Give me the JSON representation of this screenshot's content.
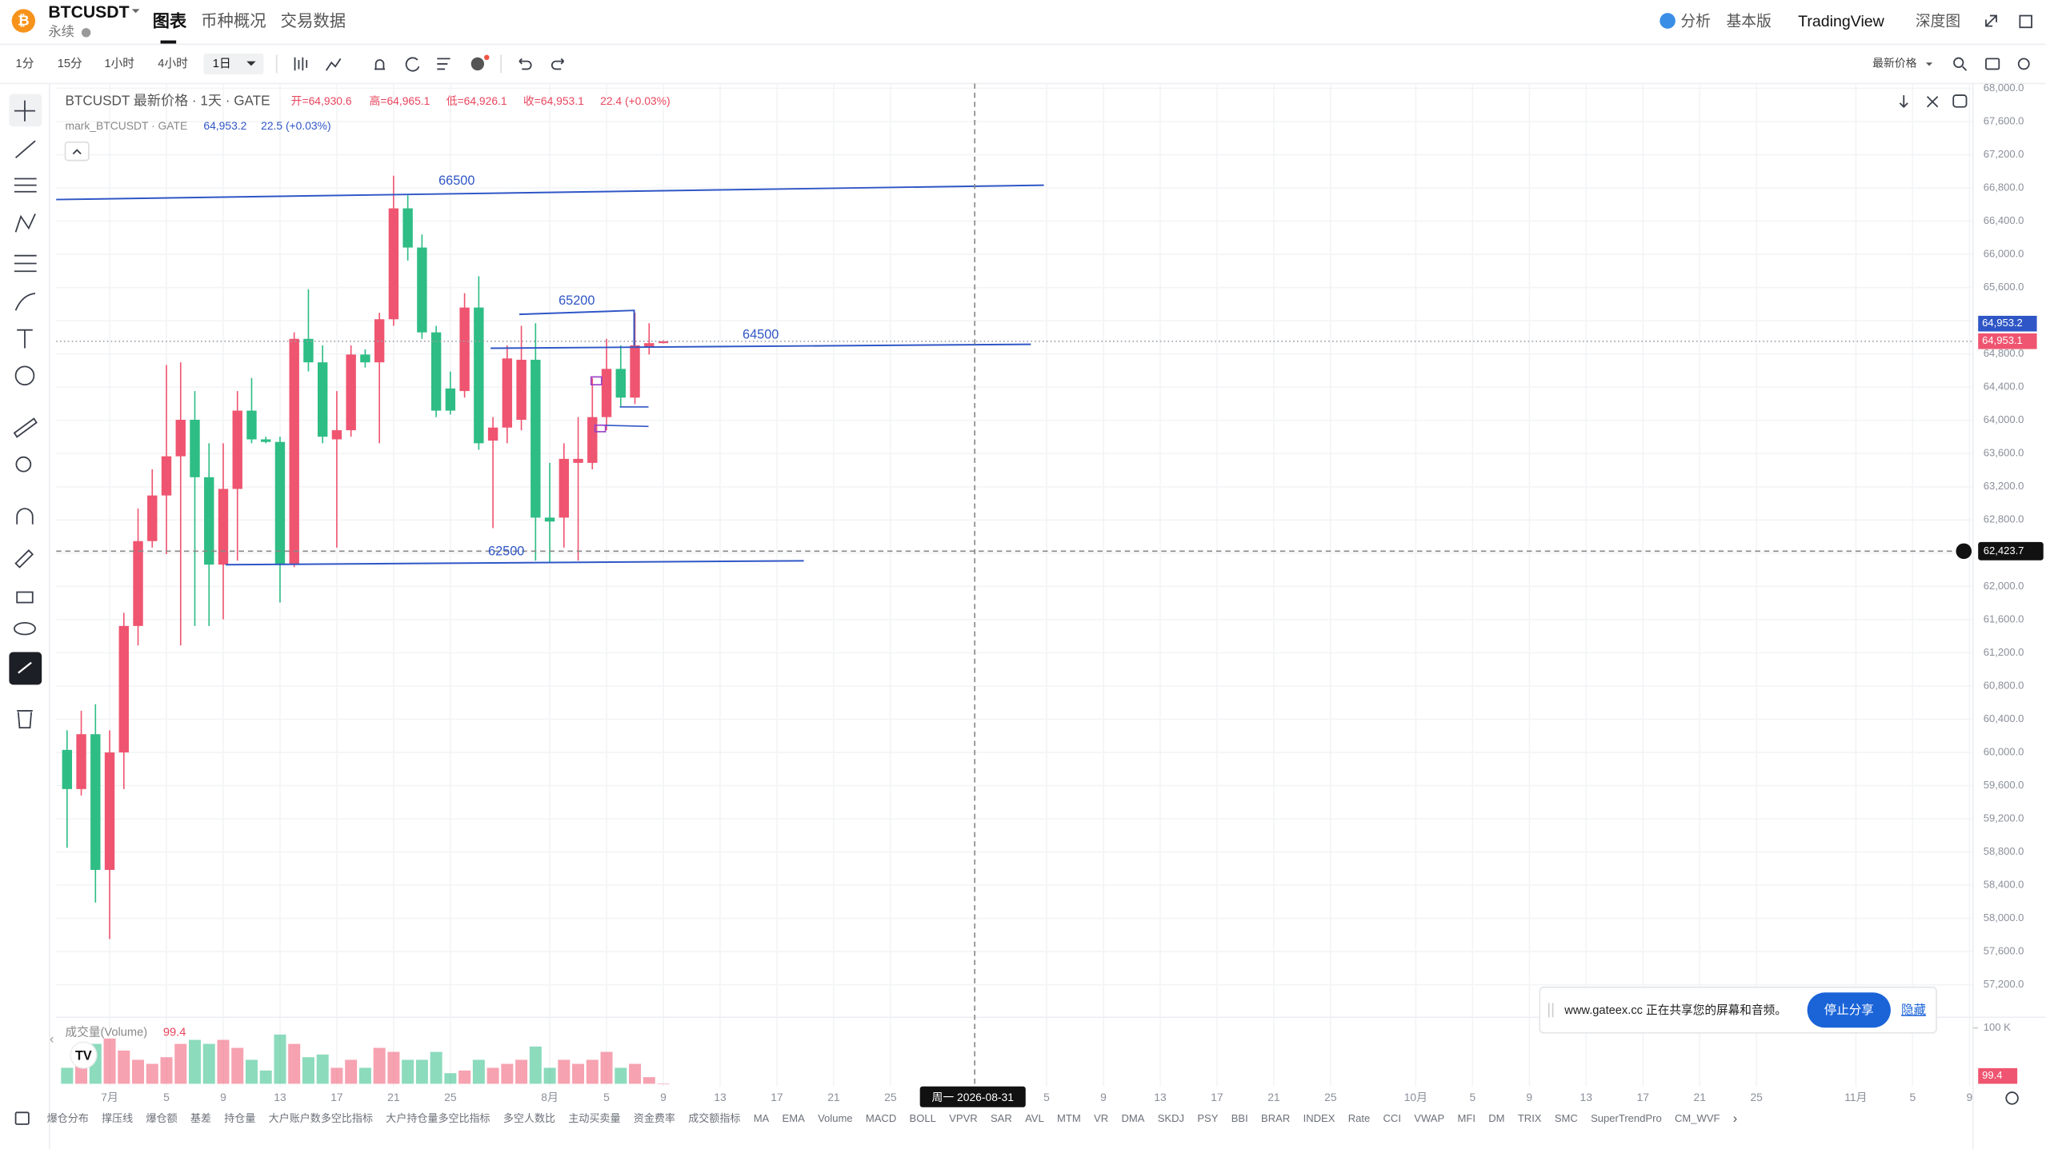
{
  "header": {
    "symbol": "BTCUSDT",
    "contract": "永续",
    "tabs": [
      "图表",
      "币种概况",
      "交易数据"
    ],
    "right": [
      "分析",
      "基本版",
      "TradingView",
      "深度图"
    ]
  },
  "toolbar": {
    "intervals": [
      "1分",
      "15分",
      "1小时",
      "4小时",
      "1日"
    ],
    "price_type": "最新价格"
  },
  "chart_legend": {
    "items": [
      "开=64,930.6",
      "高=64,965.1",
      "低=64,926.1",
      "收=64,953.1",
      "22.4 (+0.03%)"
    ],
    "mark_title": "mark_BTCUSDT · GATE",
    "mark_items": [
      "64,953.2",
      "22.5 (+0.03%)"
    ]
  },
  "indicators": [
    "爆仓分布",
    "撑压线",
    "爆仓额",
    "基差",
    "持仓量",
    "大户账户数多空比指标",
    "大户持仓量多空比指标",
    "多空人数比",
    "主动买卖量",
    "资金费率",
    "成交额指标",
    "MA",
    "EMA",
    "Volume",
    "MACD",
    "BOLL",
    "VPVR",
    "SAR",
    "AVL",
    "MTM",
    "VR",
    "DMA",
    "SKDJ",
    "PSY",
    "BBI",
    "BRAR",
    "INDEX",
    "Rate",
    "CCI",
    "VWAP",
    "MFI",
    "DM",
    "TRIX",
    "SMC",
    "SuperTrendPro",
    "CM_WVF"
  ],
  "share_bar": {
    "message": "www.gateex.cc 正在共享您的屏幕和音频。",
    "stop": "停止分享",
    "hide": "隐藏"
  },
  "chart_data": {
    "type": "candlestick",
    "title": "BTCUSDT 最新价格 · 1天 · GATE",
    "categories": [
      null,
      null,
      null,
      "7月",
      null,
      null,
      null,
      "5",
      null,
      null,
      null,
      "9",
      null,
      null,
      null,
      "13",
      null,
      null,
      null,
      "17",
      null,
      null,
      null,
      "21",
      null,
      null,
      null,
      "25",
      null,
      null,
      null,
      null,
      null,
      null,
      "8月",
      null,
      null,
      null,
      "5",
      null,
      null,
      null,
      "9",
      null,
      null,
      null,
      "13",
      null,
      null,
      null,
      "17",
      null,
      null,
      null,
      "21",
      null,
      null,
      null,
      "25",
      null,
      null,
      null,
      null,
      null,
      null,
      null,
      null,
      null,
      null,
      "5",
      null,
      null,
      null,
      "9",
      null,
      null,
      null,
      "13",
      null,
      null,
      null,
      "17",
      null,
      null,
      null,
      "21",
      null,
      null,
      null,
      "25",
      null,
      null,
      null,
      null,
      null,
      "10月",
      null,
      null,
      null,
      "5",
      null,
      null,
      null,
      "9",
      null,
      null,
      null,
      "13",
      null,
      null,
      null,
      "17",
      null,
      null,
      null,
      "21",
      null,
      null,
      null,
      "25",
      null,
      null,
      null,
      null,
      null,
      null,
      "11月",
      null,
      null,
      null,
      "5",
      null,
      null,
      null,
      "9"
    ],
    "open": [
      60030,
      59558,
      60219,
      58584,
      59999,
      61523,
      62545,
      63095,
      63567,
      64007,
      63315,
      62262,
      63174,
      64117,
      63771,
      63740,
      62262,
      64982,
      64699,
      63771,
      63881,
      64793,
      64699,
      65218,
      66554,
      66082,
      65060,
      64384,
      64353,
      65359,
      63756,
      63913,
      64007,
      64730,
      62828,
      62828,
      63488,
      63488,
      64039,
      64620,
      64274,
      64880,
      64930.6,
      null,
      null,
      null,
      null,
      null,
      null,
      null,
      null,
      null,
      null,
      null,
      null,
      null,
      null,
      null,
      null,
      null,
      null,
      null,
      null,
      null,
      null,
      null,
      null,
      null,
      null,
      null,
      null,
      null,
      null,
      null,
      null,
      null,
      null,
      null,
      null,
      null,
      null,
      null,
      null,
      null,
      null,
      null,
      null,
      null,
      null,
      null,
      null,
      null,
      null,
      null,
      null,
      null,
      null,
      null,
      null,
      null,
      null,
      null,
      null,
      null,
      null,
      null,
      null,
      null,
      null,
      null,
      null,
      null,
      null,
      null,
      null,
      null,
      null,
      null,
      null,
      null,
      null,
      null,
      null,
      null,
      null,
      null,
      null,
      null,
      null,
      null,
      null,
      null,
      null,
      null,
      null
    ],
    "high": [
      60266,
      60502,
      60580,
      60266,
      61681,
      62938,
      63410,
      64667,
      64699,
      64353,
      63724,
      63724,
      64353,
      64510,
      63803,
      63803,
      65060,
      65579,
      64903,
      64353,
      64903,
      64856,
      65296,
      66947,
      66711,
      66239,
      65139,
      64589,
      65532,
      65736,
      64039,
      64903,
      65139,
      65170,
      63488,
      63724,
      64039,
      64510,
      64982,
      64903,
      65296,
      65170,
      64965.1,
      null,
      null,
      null,
      null,
      null,
      null,
      null,
      null,
      null,
      null,
      null,
      null,
      null,
      null,
      null,
      null,
      null,
      null,
      null,
      null,
      null,
      null,
      null,
      null,
      null,
      null,
      null,
      null,
      null,
      null,
      null,
      null,
      null,
      null,
      null,
      null,
      null,
      null,
      null,
      null,
      null,
      null,
      null,
      null,
      null,
      null,
      null,
      null,
      null,
      null,
      null,
      null,
      null,
      null,
      null,
      null,
      null,
      null,
      null,
      null,
      null,
      null,
      null,
      null,
      null,
      null,
      null,
      null,
      null,
      null,
      null,
      null,
      null,
      null,
      null,
      null,
      null,
      null,
      null,
      null,
      null,
      null,
      null,
      null,
      null,
      null,
      null,
      null,
      null,
      null,
      null,
      null
    ],
    "low": [
      58851,
      59480,
      58191,
      57751,
      59558,
      61288,
      62467,
      62388,
      61288,
      61523,
      61523,
      61602,
      62309,
      63724,
      63724,
      61806,
      62231,
      64589,
      63724,
      62467,
      63803,
      64636,
      63724,
      65139,
      65925,
      64982,
      64039,
      64070,
      64274,
      63646,
      62702,
      63724,
      63881,
      62309,
      62278,
      62467,
      62309,
      63410,
      63881,
      64164,
      64196,
      64793,
      64926.1,
      null,
      null,
      null,
      null,
      null,
      null,
      null,
      null,
      null,
      null,
      null,
      null,
      null,
      null,
      null,
      null,
      null,
      null,
      null,
      null,
      null,
      null,
      null,
      null,
      null,
      null,
      null,
      null,
      null,
      null,
      null,
      null,
      null,
      null,
      null,
      null,
      null,
      null,
      null,
      null,
      null,
      null,
      null,
      null,
      null,
      null,
      null,
      null,
      null,
      null,
      null,
      null,
      null,
      null,
      null,
      null,
      null,
      null,
      null,
      null,
      null,
      null,
      null,
      null,
      null,
      null,
      null,
      null,
      null,
      null,
      null,
      null,
      null,
      null,
      null,
      null,
      null,
      null,
      null,
      null,
      null,
      null,
      null,
      null,
      null,
      null,
      null,
      null,
      null,
      null,
      null,
      null
    ],
    "close": [
      59558,
      60219,
      58584,
      59999,
      61523,
      62545,
      63095,
      63567,
      64007,
      63315,
      62262,
      63174,
      64117,
      63771,
      63740,
      62262,
      64982,
      64699,
      63803,
      63881,
      64793,
      64699,
      65218,
      66554,
      66082,
      65060,
      64117,
      64117,
      65359,
      63724,
      63913,
      64746,
      64730,
      62828,
      62781,
      63536,
      63536,
      64039,
      64620,
      64274,
      64903,
      64930,
      64953.1,
      null,
      null,
      null,
      null,
      null,
      null,
      null,
      null,
      null,
      null,
      null,
      null,
      null,
      null,
      null,
      null,
      null,
      null,
      null,
      null,
      null,
      null,
      null,
      null,
      null,
      null,
      null,
      null,
      null,
      null,
      null,
      null,
      null,
      null,
      null,
      null,
      null,
      null,
      null,
      null,
      null,
      null,
      null,
      null,
      null,
      null,
      null,
      null,
      null,
      null,
      null,
      null,
      null,
      null,
      null,
      null,
      null,
      null,
      null,
      null,
      null,
      null,
      null,
      null,
      null,
      null,
      null,
      null,
      null,
      null,
      null,
      null,
      null,
      null,
      null,
      null,
      null,
      null,
      null,
      null,
      null,
      null,
      null,
      null,
      null,
      null,
      null,
      null,
      null,
      null,
      null,
      null
    ],
    "up_color": "#ef5570",
    "down_color": "#2ebd85",
    "ylim": [
      56840,
      68090
    ],
    "yticks": [
      {
        "value": 68000,
        "label": "68,000.0"
      },
      {
        "value": 67600,
        "label": "67,600.0"
      },
      {
        "value": 67200,
        "label": "67,200.0"
      },
      {
        "value": 66800,
        "label": "66,800.0"
      },
      {
        "value": 66400,
        "label": "66,400.0"
      },
      {
        "value": 66000,
        "label": "66,000.0"
      },
      {
        "value": 65600,
        "label": "65,600.0"
      },
      {
        "value": 65200,
        "label": "65,200.0"
      },
      {
        "value": 64800,
        "label": "64,800.0"
      },
      {
        "value": 64400,
        "label": "64,400.0"
      },
      {
        "value": 64000,
        "label": "64,000.0"
      },
      {
        "value": 63600,
        "label": "63,600.0"
      },
      {
        "value": 63200,
        "label": "63,200.0"
      },
      {
        "value": 62800,
        "label": "62,800.0"
      },
      {
        "value": 62400,
        "label": "62,400.0"
      },
      {
        "value": 62000,
        "label": "62,000.0"
      },
      {
        "value": 61600,
        "label": "61,600.0"
      },
      {
        "value": 61200,
        "label": "61,200.0"
      },
      {
        "value": 60800,
        "label": "60,800.0"
      },
      {
        "value": 60400,
        "label": "60,400.0"
      },
      {
        "value": 60000,
        "label": "60,000.0"
      },
      {
        "value": 59600,
        "label": "59,600.0"
      },
      {
        "value": 59200,
        "label": "59,200.0"
      },
      {
        "value": 58800,
        "label": "58,800.0"
      },
      {
        "value": 58400,
        "label": "58,400.0"
      },
      {
        "value": 58000,
        "label": "58,000.0"
      },
      {
        "value": 57600,
        "label": "57,600.0"
      },
      {
        "value": 57200,
        "label": "57,200.0"
      }
    ],
    "grid": true,
    "last_price": {
      "value": 64953.1,
      "label": "64,953.1"
    },
    "mark_price": {
      "value": 64953.2,
      "label": "64,953.2"
    },
    "crosshair": {
      "price": {
        "value": 62423.7,
        "label": "62,423.7"
      },
      "date": "周一 2026-08-31"
    },
    "annotations": [
      "66500",
      "65200",
      "64500",
      "62500"
    ],
    "volume": {
      "name": "成交量(Volume)",
      "values": [
        28600,
        52400,
        71400,
        81000,
        59500,
        42900,
        35700,
        47600,
        71400,
        78600,
        71400,
        78600,
        64300,
        42900,
        23800,
        88100,
        71400,
        47600,
        52400,
        28600,
        42900,
        28600,
        64300,
        57100,
        42900,
        42900,
        57100,
        19000,
        23800,
        42900,
        28600,
        35700,
        42900,
        66700,
        28600,
        42900,
        35700,
        42900,
        57100,
        28600,
        35700,
        11900,
        99.4,
        null,
        null,
        null,
        null,
        null,
        null,
        null,
        null,
        null,
        null,
        null,
        null,
        null,
        null,
        null,
        null,
        null,
        null,
        null,
        null,
        null,
        null,
        null,
        null,
        null,
        null,
        null,
        null,
        null,
        null,
        null,
        null,
        null,
        null,
        null,
        null,
        null,
        null,
        null,
        null,
        null,
        null,
        null,
        null,
        null,
        null,
        null,
        null,
        null,
        null,
        null,
        null,
        null,
        null,
        null,
        null,
        null,
        null,
        null,
        null,
        null,
        null,
        null,
        null,
        null,
        null,
        null,
        null,
        null,
        null,
        null,
        null,
        null,
        null,
        null,
        null,
        null,
        null,
        null,
        null,
        null,
        null,
        null,
        null,
        null,
        null,
        null,
        null,
        null,
        null,
        null,
        null
      ],
      "ylim": [
        0,
        112000
      ],
      "yticks": [
        {
          "value": 100000,
          "label": "100 K"
        }
      ]
    }
  }
}
